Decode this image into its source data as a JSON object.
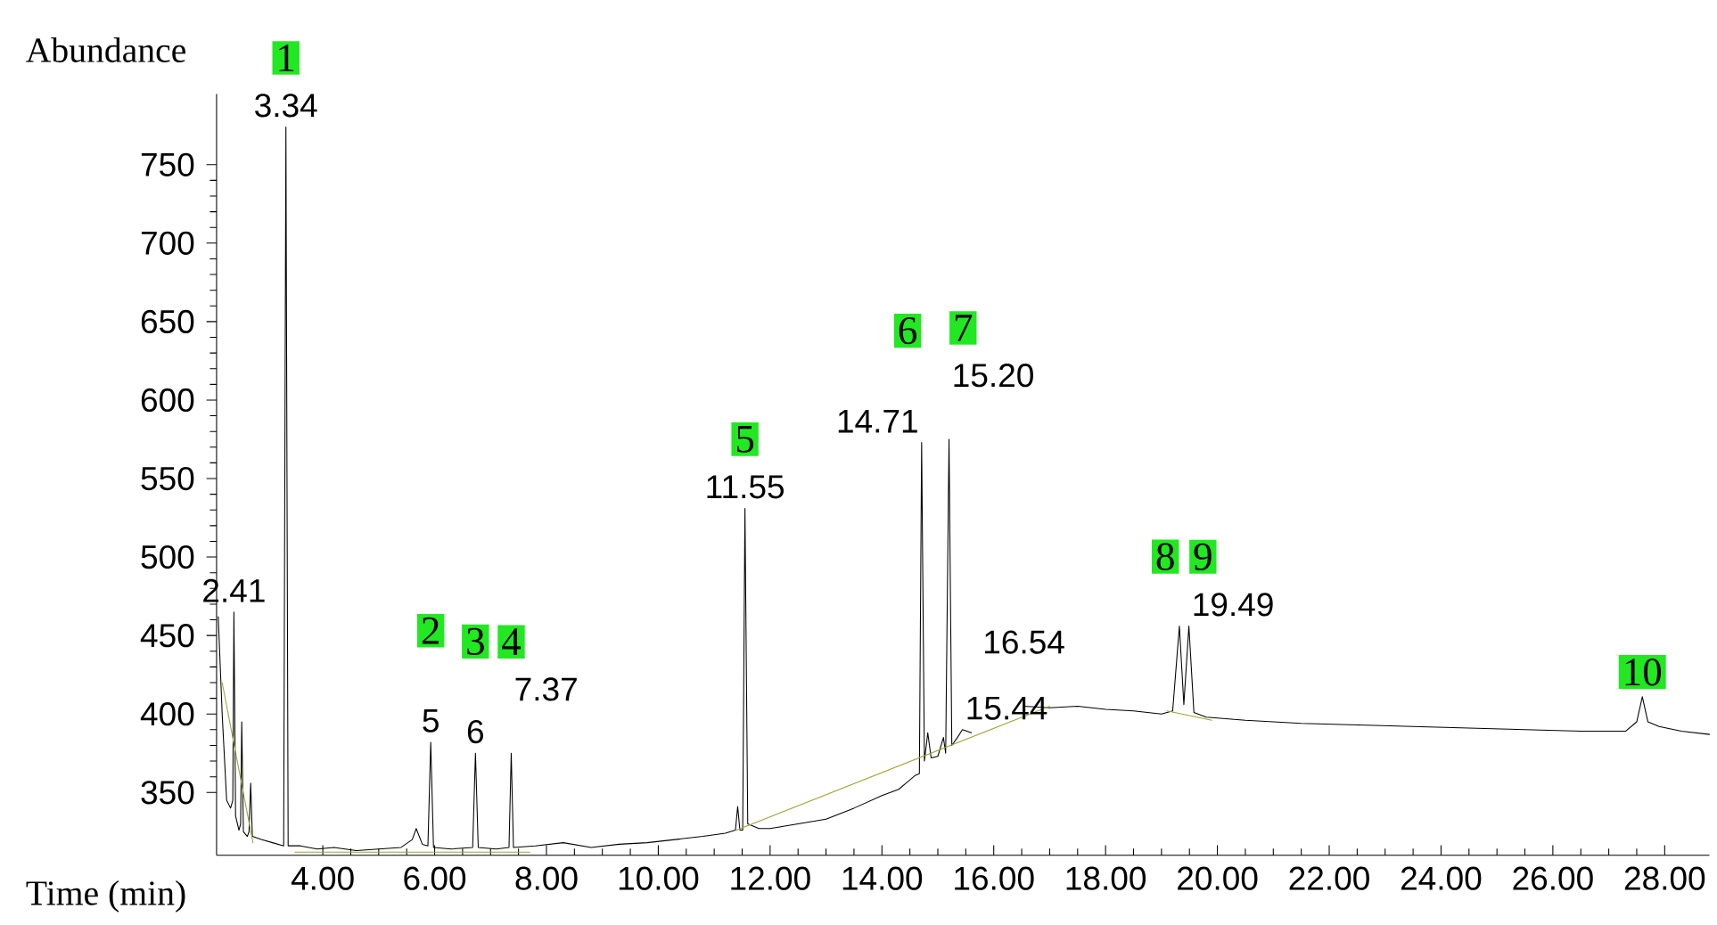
{
  "chart_data": {
    "type": "line",
    "xlabel": "Time (min)",
    "ylabel": "Abundance",
    "xlim": [
      2.1,
      28.8
    ],
    "ylim": [
      310,
      795
    ],
    "xticks": [
      {
        "value": 4,
        "label": "4.00"
      },
      {
        "value": 6,
        "label": "6.00"
      },
      {
        "value": 8,
        "label": "8.00"
      },
      {
        "value": 10,
        "label": "10.00"
      },
      {
        "value": 12,
        "label": "12.00"
      },
      {
        "value": 14,
        "label": "14.00"
      },
      {
        "value": 16,
        "label": "16.00"
      },
      {
        "value": 18,
        "label": "18.00"
      },
      {
        "value": 20,
        "label": "20.00"
      },
      {
        "value": 22,
        "label": "22.00"
      },
      {
        "value": 24,
        "label": "24.00"
      },
      {
        "value": 26,
        "label": "26.00"
      },
      {
        "value": 28,
        "label": "28.00"
      }
    ],
    "yticks": [
      350,
      400,
      450,
      500,
      550,
      600,
      650,
      700,
      750
    ],
    "series": [
      {
        "color": "#000000",
        "x": [
          2.13,
          2.2,
          2.28,
          2.35,
          2.39,
          2.41,
          2.44,
          2.5,
          2.53,
          2.55,
          2.58,
          2.65,
          2.68,
          2.71,
          2.74,
          2.9,
          3.1,
          3.3,
          3.34,
          3.38,
          3.6,
          3.9,
          4.2,
          4.6,
          5.0,
          5.4,
          5.6,
          5.67,
          5.78,
          5.88,
          5.93,
          5.98,
          6.3,
          6.68,
          6.73,
          6.78,
          7.1,
          7.33,
          7.37,
          7.41,
          7.8,
          8.3,
          8.8,
          9.3,
          9.8,
          10.3,
          10.8,
          11.2,
          11.38,
          11.42,
          11.46,
          11.51,
          11.55,
          11.6,
          11.8,
          12.0,
          12.5,
          13.0,
          13.5,
          14.0,
          14.3,
          14.6,
          14.67,
          14.71,
          14.76,
          14.82,
          14.88,
          15.0,
          15.1,
          15.14,
          15.2,
          15.25,
          15.35,
          15.44,
          15.6,
          16.0,
          16.54,
          17.0,
          17.5,
          18.0,
          18.5,
          19.0,
          19.2,
          19.32,
          19.4,
          19.49,
          19.58,
          19.8,
          20.5,
          21.5,
          22.5,
          23.5,
          24.5,
          25.5,
          26.5,
          27.3,
          27.5,
          27.6,
          27.7,
          27.9,
          28.3,
          28.8
        ],
        "values": [
          462,
          400,
          345,
          340,
          345,
          465,
          335,
          326,
          330,
          395,
          325,
          322,
          325,
          356,
          322,
          320,
          318,
          316,
          774,
          316,
          316,
          314,
          315,
          313,
          314,
          315,
          320,
          327,
          317,
          316,
          382,
          315,
          314,
          315,
          375,
          315,
          314,
          315,
          375,
          315,
          316,
          318,
          315,
          317,
          318,
          320,
          322,
          324,
          326,
          341,
          326,
          326,
          531,
          330,
          327,
          327,
          330,
          333,
          340,
          348,
          352,
          361,
          362,
          573,
          370,
          388,
          372,
          373,
          385,
          375,
          575,
          380,
          385,
          390,
          388,
          null,
          405,
          404,
          405,
          403,
          402,
          400,
          402,
          456,
          406,
          456,
          401,
          398,
          396,
          394,
          393,
          392,
          391,
          390,
          389,
          389,
          395,
          411,
          395,
          392,
          389,
          387
        ]
      },
      {
        "color": "#9aa53a",
        "x": [
          2.2,
          2.75,
          3.0,
          3.5,
          7.7,
          9.0,
          11.4,
          17.0,
          18.0,
          19.1,
          19.9
        ],
        "values": [
          420,
          318,
          null,
          312,
          312,
          null,
          326,
          405,
          null,
          402,
          396
        ]
      }
    ],
    "annotations": [
      {
        "text": "1",
        "x": 3.34,
        "y": 774
      },
      {
        "text": "2",
        "x": 5.93,
        "y": 382
      },
      {
        "text": "3",
        "x": 6.73,
        "y": 375
      },
      {
        "text": "4",
        "x": 7.37,
        "y": 375
      },
      {
        "text": "5",
        "x": 11.55,
        "y": 531
      },
      {
        "text": "6",
        "x": 14.71,
        "y": 573
      },
      {
        "text": "7",
        "x": 15.2,
        "y": 575
      },
      {
        "text": "8",
        "x": 19.32,
        "y": 456
      },
      {
        "text": "9",
        "x": 19.49,
        "y": 456
      },
      {
        "text": "10",
        "x": 27.6,
        "y": 411
      },
      {
        "text": "3.34",
        "x": 3.34,
        "y": 774
      },
      {
        "text": "2.41",
        "x": 2.41,
        "y": 465
      },
      {
        "text": "5",
        "x": 5.93,
        "y": 382
      },
      {
        "text": "6",
        "x": 6.73,
        "y": 375
      },
      {
        "text": "7.37",
        "x": 7.37,
        "y": 375
      },
      {
        "text": "11.55",
        "x": 11.55,
        "y": 531
      },
      {
        "text": "14.71",
        "x": 14.71,
        "y": 573
      },
      {
        "text": "15.20",
        "x": 15.2,
        "y": 575
      },
      {
        "text": "15.44",
        "x": 15.44,
        "y": 390
      },
      {
        "text": "16.54",
        "x": 16.54,
        "y": 405
      },
      {
        "text": "19.49",
        "x": 19.49,
        "y": 456
      }
    ]
  }
}
